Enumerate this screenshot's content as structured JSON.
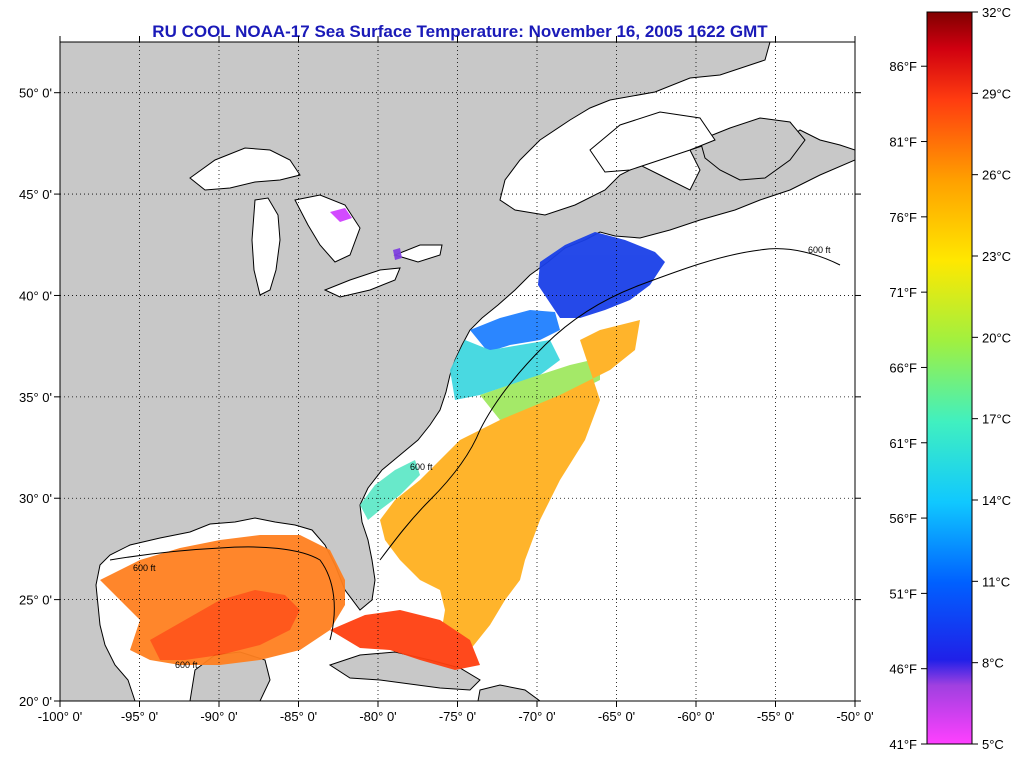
{
  "title": "RU COOL  NOAA-17  Sea Surface Temperature:  November 16, 2005 1622 GMT",
  "map": {
    "lon_range": [
      -100,
      -50
    ],
    "lat_range": [
      20,
      52.5
    ],
    "lon_ticks": [
      "-100° 0'",
      "-95° 0'",
      "-90° 0'",
      "-85° 0'",
      "-80° 0'",
      "-75° 0'",
      "-70° 0'",
      "-65° 0'",
      "-60° 0'",
      "-55° 0'",
      "-50° 0'"
    ],
    "lat_ticks": [
      "20° 0'",
      "25° 0'",
      "30° 0'",
      "35° 0'",
      "40° 0'",
      "45° 0'",
      "50° 0'"
    ],
    "land_color": "#c8c8c8",
    "ocean_color": "#ffffff",
    "grid": "dotted",
    "contour_label": "600 ft"
  },
  "colorbar": {
    "celsius_labels": [
      "32°C",
      "29°C",
      "26°C",
      "23°C",
      "20°C",
      "17°C",
      "14°C",
      "11°C",
      "8°C",
      "5°C"
    ],
    "fahrenheit_labels": [
      "86°F",
      "81°F",
      "76°F",
      "71°F",
      "66°F",
      "61°F",
      "56°F",
      "51°F",
      "46°F",
      "41°F"
    ],
    "colors": [
      "#ff40ff",
      "#6a3ac8",
      "#1818e0",
      "#0a7aff",
      "#18d0ff",
      "#50f0a0",
      "#c8f028",
      "#ffe000",
      "#ffa000",
      "#ff5000",
      "#e01010",
      "#800000"
    ]
  }
}
